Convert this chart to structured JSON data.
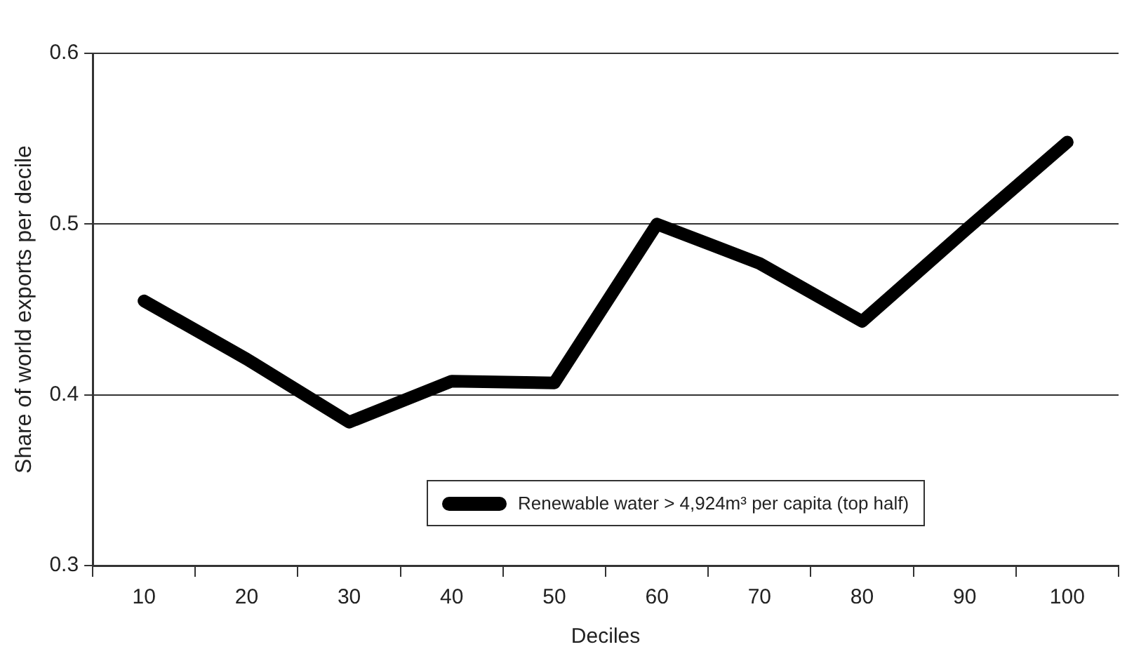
{
  "chart_data": {
    "type": "line",
    "xlabel": "Deciles",
    "ylabel": "Share of world exports per decile",
    "categories": [
      "10",
      "20",
      "30",
      "40",
      "50",
      "60",
      "70",
      "80",
      "90",
      "100"
    ],
    "series": [
      {
        "name": "Renewable water > 4,924m³ per capita (top half)",
        "color": "#000000",
        "values": [
          0.455,
          0.421,
          0.384,
          0.408,
          0.407,
          0.5,
          0.477,
          0.443,
          0.496,
          0.548
        ]
      }
    ],
    "ylim": [
      0.3,
      0.6
    ],
    "yticks": [
      0.3,
      0.4,
      0.5,
      0.6
    ],
    "grid": "y",
    "legend": "bottom",
    "marker": "none",
    "line_style": "solid"
  }
}
